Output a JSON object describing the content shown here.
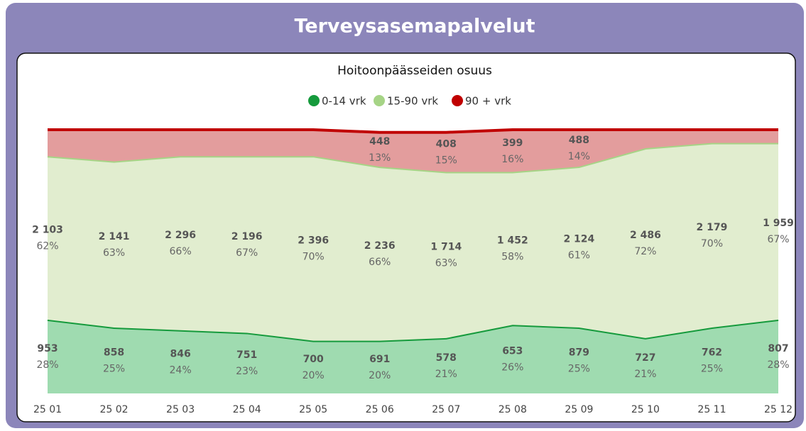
{
  "header": {
    "title": "Terveysasemapalvelut"
  },
  "chart_data": {
    "type": "stacked_area",
    "title": "Hoitoonpäässeiden osuus",
    "categories": [
      "25 01",
      "25 02",
      "25 03",
      "25 04",
      "25 05",
      "25 06",
      "25 07",
      "25 08",
      "25 09",
      "25 10",
      "25 11",
      "25 12"
    ],
    "ylim": [
      0,
      100
    ],
    "legend": "top",
    "series": [
      {
        "name": "0-14 vrk",
        "color": "#159a3c",
        "fill": "#9fdbb0",
        "values": [
          28,
          25,
          24,
          23,
          20,
          20,
          21,
          26,
          25,
          21,
          25,
          28
        ],
        "value_labels": [
          "28%",
          "25%",
          "24%",
          "23%",
          "20%",
          "20%",
          "21%",
          "26%",
          "25%",
          "21%",
          "25%",
          "28%"
        ],
        "counts": [
          953,
          858,
          846,
          751,
          700,
          691,
          578,
          653,
          879,
          727,
          762,
          807
        ],
        "count_labels": [
          "953",
          "858",
          "846",
          "751",
          "700",
          "691",
          "578",
          "653",
          "879",
          "727",
          "762",
          "807"
        ]
      },
      {
        "name": "15-90 vrk",
        "color": "#a6d486",
        "fill": "#e1edcf",
        "values": [
          62,
          63,
          66,
          67,
          70,
          66,
          63,
          58,
          61,
          72,
          70,
          67
        ],
        "value_labels": [
          "62%",
          "63%",
          "66%",
          "67%",
          "70%",
          "66%",
          "63%",
          "58%",
          "61%",
          "72%",
          "70%",
          "67%"
        ],
        "counts": [
          2103,
          2141,
          2296,
          2196,
          2396,
          2236,
          1714,
          1452,
          2124,
          2486,
          2179,
          1959
        ],
        "count_labels": [
          "2 103",
          "2 141",
          "2 296",
          "2 196",
          "2 396",
          "2 236",
          "1 714",
          "1 452",
          "2 124",
          "2 486",
          "2 179",
          "1 959"
        ]
      },
      {
        "name": "90 + vrk",
        "color": "#c00000",
        "fill": "#e39d9d",
        "values": [
          10,
          12,
          10,
          10,
          10,
          13,
          15,
          16,
          14,
          7,
          5,
          5
        ],
        "value_labels": [
          null,
          null,
          null,
          null,
          null,
          "13%",
          "15%",
          "16%",
          "14%",
          null,
          null,
          null
        ],
        "counts": [
          null,
          null,
          null,
          null,
          null,
          448,
          408,
          399,
          488,
          null,
          null,
          null
        ],
        "count_labels": [
          null,
          null,
          null,
          null,
          null,
          "448",
          "408",
          "399",
          "488",
          null,
          null,
          null
        ]
      }
    ]
  }
}
